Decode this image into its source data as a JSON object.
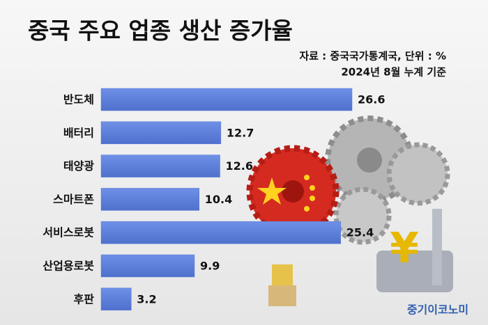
{
  "chart_data": {
    "type": "hbar",
    "title": "중국 주요 업종 생산 증가율",
    "subtitle": [
      "자료 : 중국국가통계국, 단위 : %",
      "2024년 8월 누계 기준"
    ],
    "categories": [
      "반도체",
      "배터리",
      "태양광",
      "스마트폰",
      "서비스로봇",
      "산업용로봇",
      "후판"
    ],
    "values": [
      26.6,
      12.7,
      12.6,
      10.4,
      25.4,
      9.9,
      3.2
    ],
    "color": "#5b7fdc"
  },
  "watermark": "중기이코노미"
}
